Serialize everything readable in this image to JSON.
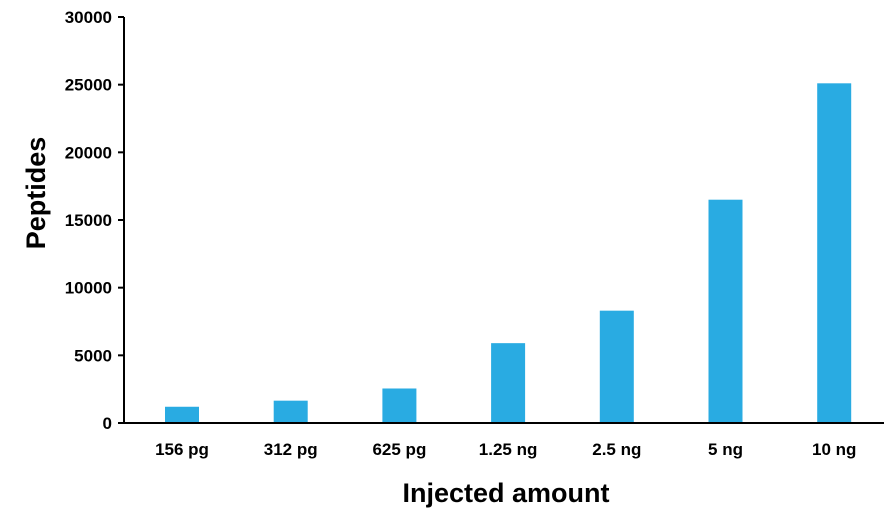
{
  "chart_data": {
    "type": "bar",
    "title": "",
    "xlabel": "Injected amount",
    "ylabel": "Peptides",
    "categories": [
      "156 pg",
      "312 pg",
      "625 pg",
      "1.25 ng",
      "2.5 ng",
      "5 ng",
      "10 ng"
    ],
    "values": [
      1200,
      1650,
      2550,
      5900,
      8300,
      16500,
      25100
    ],
    "ylim": [
      0,
      30000
    ],
    "yticks": [
      0,
      5000,
      10000,
      15000,
      20000,
      25000,
      30000
    ],
    "grid": false,
    "bar_color": "#29abe2"
  }
}
